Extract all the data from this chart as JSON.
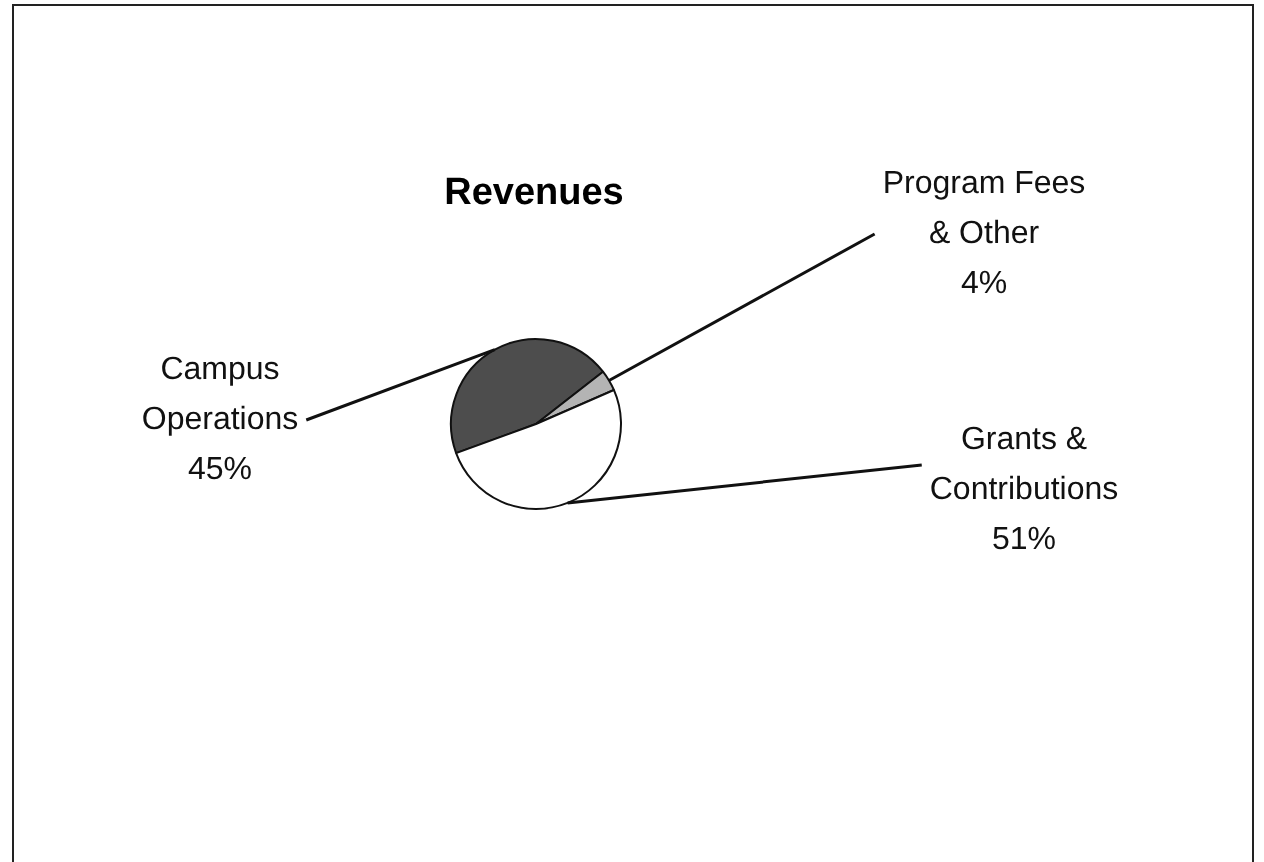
{
  "chart_data": {
    "type": "pie",
    "title": "Revenues",
    "categories": [
      "Campus Operations",
      "Program Fees & Other",
      "Grants & Contributions"
    ],
    "values": [
      45,
      4,
      51
    ],
    "value_labels": [
      "45%",
      "4%",
      "51%"
    ],
    "colors": [
      "#4d4d4d",
      "#b4b4b4",
      "#ffffff"
    ]
  }
}
